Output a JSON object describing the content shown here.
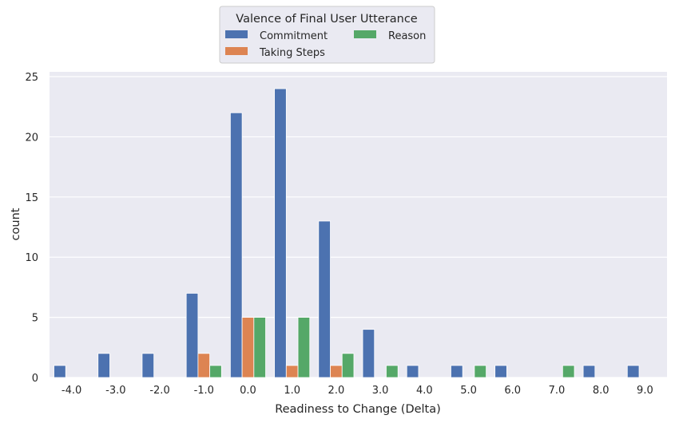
{
  "chart_data": {
    "type": "bar",
    "title": "",
    "xlabel": "Readiness to Change (Delta)",
    "ylabel": "count",
    "categories": [
      "-4.0",
      "-3.0",
      "-2.0",
      "-1.0",
      "0.0",
      "1.0",
      "2.0",
      "3.0",
      "4.0",
      "5.0",
      "6.0",
      "7.0",
      "8.0",
      "9.0"
    ],
    "yticks": [
      "0",
      "5",
      "10",
      "15",
      "20",
      "25"
    ],
    "ylim": [
      0,
      25.4
    ],
    "grid": true,
    "legend": {
      "title": "Valence of Final User Utterance",
      "placement": "top-center",
      "columns": 2
    },
    "series": [
      {
        "name": "Commitment",
        "color": "#4C72B0",
        "values": [
          1,
          2,
          2,
          7,
          22,
          24,
          13,
          4,
          1,
          1,
          1,
          0,
          1,
          1
        ]
      },
      {
        "name": "Taking Steps",
        "color": "#DD8452",
        "values": [
          0,
          0,
          0,
          2,
          5,
          1,
          1,
          0,
          0,
          0,
          0,
          0,
          0,
          0
        ]
      },
      {
        "name": "Reason",
        "color": "#55A868",
        "values": [
          0,
          0,
          0,
          1,
          5,
          5,
          2,
          1,
          0,
          1,
          0,
          1,
          0,
          0
        ]
      }
    ],
    "colors": {
      "plot_background": "#EAEAF2",
      "grid": "#FFFFFF",
      "text": "#262626"
    }
  }
}
